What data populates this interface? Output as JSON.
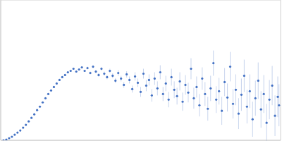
{
  "chart_data": {
    "type": "scatter",
    "color": "#4472c4",
    "marker": "circle",
    "grid": true,
    "tick_labels": false,
    "xlim": [
      0,
      3.5
    ],
    "xticks": [
      1
    ],
    "ylim": [
      0,
      2
    ],
    "yticks": [
      1
    ],
    "x": [
      0.035,
      0.07,
      0.105,
      0.14,
      0.175,
      0.21,
      0.245,
      0.28,
      0.315,
      0.35,
      0.385,
      0.42,
      0.455,
      0.49,
      0.525,
      0.56,
      0.595,
      0.63,
      0.665,
      0.7,
      0.735,
      0.77,
      0.805,
      0.84,
      0.875,
      0.91,
      0.945,
      0.98,
      1.015,
      1.05,
      1.085,
      1.12,
      1.155,
      1.19,
      1.225,
      1.26,
      1.295,
      1.33,
      1.365,
      1.4,
      1.435,
      1.47,
      1.505,
      1.54,
      1.575,
      1.61,
      1.645,
      1.68,
      1.715,
      1.75,
      1.785,
      1.82,
      1.855,
      1.89,
      1.925,
      1.96,
      1.995,
      2.03,
      2.065,
      2.1,
      2.135,
      2.17,
      2.205,
      2.24,
      2.275,
      2.31,
      2.345,
      2.38,
      2.415,
      2.45,
      2.485,
      2.52,
      2.555,
      2.59,
      2.625,
      2.66,
      2.695,
      2.73,
      2.765,
      2.8,
      2.835,
      2.87,
      2.905,
      2.94,
      2.975,
      3.01,
      3.045,
      3.08,
      3.115,
      3.15,
      3.185,
      3.22,
      3.255,
      3.29,
      3.325,
      3.36,
      3.395,
      3.43,
      3.465,
      3.48
    ],
    "values": [
      0.0,
      0.01,
      0.03,
      0.05,
      0.08,
      0.11,
      0.14,
      0.18,
      0.22,
      0.27,
      0.32,
      0.37,
      0.43,
      0.48,
      0.54,
      0.6,
      0.66,
      0.71,
      0.76,
      0.81,
      0.86,
      0.9,
      0.93,
      0.97,
      0.99,
      1.02,
      0.98,
      1.01,
      1.04,
      0.99,
      1.03,
      0.96,
      1.05,
      0.98,
      0.93,
      1.02,
      0.95,
      0.9,
      0.99,
      0.92,
      0.85,
      0.96,
      0.88,
      0.79,
      0.94,
      0.86,
      0.73,
      0.91,
      0.82,
      0.69,
      0.95,
      0.78,
      0.86,
      0.64,
      0.88,
      0.74,
      0.97,
      0.66,
      0.81,
      0.58,
      0.9,
      0.72,
      0.63,
      0.84,
      0.55,
      0.79,
      0.68,
      1.02,
      0.6,
      0.76,
      0.5,
      0.88,
      0.66,
      0.45,
      0.74,
      1.1,
      0.58,
      0.7,
      0.42,
      0.83,
      0.61,
      1.05,
      0.52,
      0.72,
      0.38,
      0.65,
      0.92,
      0.48,
      0.7,
      0.3,
      0.6,
      0.85,
      0.44,
      0.66,
      0.25,
      0.58,
      0.78,
      0.35,
      0.62,
      0.5
    ],
    "errors": [
      0.005,
      0.005,
      0.005,
      0.005,
      0.005,
      0.005,
      0.005,
      0.005,
      0.008,
      0.008,
      0.008,
      0.008,
      0.01,
      0.01,
      0.01,
      0.01,
      0.01,
      0.01,
      0.01,
      0.01,
      0.01,
      0.01,
      0.01,
      0.01,
      0.01,
      0.015,
      0.015,
      0.015,
      0.015,
      0.015,
      0.02,
      0.02,
      0.02,
      0.025,
      0.025,
      0.025,
      0.03,
      0.03,
      0.03,
      0.035,
      0.035,
      0.04,
      0.04,
      0.04,
      0.045,
      0.05,
      0.05,
      0.06,
      0.06,
      0.07,
      0.07,
      0.08,
      0.08,
      0.09,
      0.09,
      0.1,
      0.1,
      0.1,
      0.11,
      0.11,
      0.12,
      0.12,
      0.12,
      0.13,
      0.13,
      0.14,
      0.14,
      0.15,
      0.15,
      0.15,
      0.16,
      0.16,
      0.17,
      0.17,
      0.18,
      0.18,
      0.19,
      0.19,
      0.2,
      0.2,
      0.2,
      0.21,
      0.21,
      0.22,
      0.22,
      0.23,
      0.23,
      0.24,
      0.24,
      0.25,
      0.25,
      0.26,
      0.26,
      0.27,
      0.27,
      0.28,
      0.28,
      0.29,
      0.29,
      0.3
    ]
  }
}
